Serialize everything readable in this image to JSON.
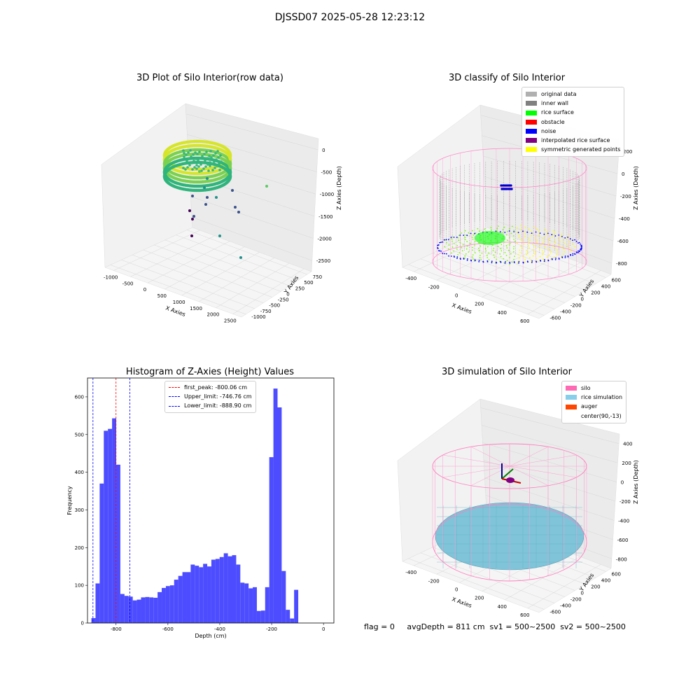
{
  "figure": {
    "suptitle": "DJSSD07 2025-05-28 12:23:12",
    "footer": "flag = 0     avgDepth = 811 cm  sv1 = 500~2500  sv2 = 500~2500"
  },
  "chart_data": [
    {
      "type": "scatter",
      "title": "3D Plot of Silo Interior(row data)",
      "xlabel": "X Axies",
      "ylabel": "Y Axies",
      "zlabel": "Z Axies (Depth)",
      "x_ticks": [
        "-1000",
        "-500",
        "0",
        "500",
        "1000",
        "1500",
        "2000",
        "2500"
      ],
      "y_ticks": [
        "-1000",
        "-750",
        "-500",
        "-250",
        "0",
        "250",
        "500",
        "750"
      ],
      "z_ticks": [
        "0",
        "-500",
        "-1000",
        "-1500",
        "-2000",
        "-2500"
      ],
      "xlim": [
        -1000,
        2500
      ],
      "ylim": [
        -1000,
        750
      ],
      "zlim": [
        -2500,
        0
      ],
      "colormap": "viridis"
    },
    {
      "type": "scatter",
      "title": "3D classify of Silo Interior",
      "xlabel": "X Axies",
      "ylabel": "Y Axies",
      "zlabel": "Z Axies (Depth)",
      "x_ticks": [
        "-400",
        "-200",
        "0",
        "200",
        "400",
        "600"
      ],
      "y_ticks": [
        "-600",
        "-400",
        "-200",
        "0",
        "200",
        "400",
        "600"
      ],
      "z_ticks": [
        "200",
        "0",
        "-200",
        "-400",
        "-600",
        "-800"
      ],
      "legend": [
        {
          "label": "original data",
          "color": "#b0b0b0"
        },
        {
          "label": "inner wall",
          "color": "#808080"
        },
        {
          "label": "rice surface",
          "color": "#00ff00"
        },
        {
          "label": "obstacle",
          "color": "#ff0000"
        },
        {
          "label": "noise",
          "color": "#0000ff"
        },
        {
          "label": "interpolated rice surface",
          "color": "#800080"
        },
        {
          "label": "symmetric generated points",
          "color": "#ffff00"
        }
      ]
    },
    {
      "type": "bar",
      "title": "Histogram of Z-Axies (Height) Values",
      "xlabel": "Depth (cm)",
      "ylabel": "Frequency",
      "xlim": [
        -910,
        40
      ],
      "ylim": [
        0,
        650
      ],
      "bar_color": "#4d4dff",
      "x_ticks": [
        "-800",
        "-600",
        "-400",
        "-200",
        "0"
      ],
      "x_tick_values": [
        -800,
        -600,
        -400,
        -200,
        0
      ],
      "y_ticks": [
        "0",
        "100",
        "200",
        "300",
        "400",
        "500",
        "600"
      ],
      "y_tick_values": [
        0,
        100,
        200,
        300,
        400,
        500,
        600
      ],
      "bin_start": -895,
      "bin_width": 15.95,
      "values": [
        13,
        105,
        370,
        510,
        515,
        543,
        420,
        77,
        72,
        70,
        60,
        62,
        68,
        69,
        68,
        67,
        82,
        93,
        98,
        100,
        115,
        125,
        135,
        135,
        155,
        152,
        148,
        157,
        150,
        168,
        170,
        175,
        185,
        177,
        180,
        155,
        107,
        105,
        92,
        95,
        32,
        33,
        95,
        440,
        622,
        572,
        138,
        35,
        12,
        88
      ],
      "vlines": [
        {
          "label": "first_peak: -800.06 cm",
          "x": -800.06,
          "color": "#ff0000"
        },
        {
          "label": "Upper_limit: -746.76 cm",
          "x": -746.76,
          "color": "#0000ff"
        },
        {
          "label": "Lower_limit: -888.90 cm",
          "x": -888.9,
          "color": "#0000ff"
        }
      ]
    },
    {
      "type": "scatter",
      "title": "3D simulation of Silo Interior",
      "xlabel": "X Axies",
      "ylabel": "Y Axies",
      "zlabel": "Z Axies (Depth)",
      "x_ticks": [
        "-400",
        "-200",
        "0",
        "200",
        "400",
        "600"
      ],
      "y_ticks": [
        "-600",
        "-400",
        "-200",
        "0",
        "200",
        "400",
        "600"
      ],
      "z_ticks": [
        "400",
        "200",
        "0",
        "-200",
        "-400",
        "-600",
        "-800"
      ],
      "legend": [
        {
          "label": "silo",
          "color": "#ff69b4"
        },
        {
          "label": "rice simulation",
          "color": "#87ceeb"
        },
        {
          "label": "auger",
          "color": "#ff4500"
        },
        {
          "label": "center(90,-13)",
          "color": ""
        }
      ]
    }
  ]
}
